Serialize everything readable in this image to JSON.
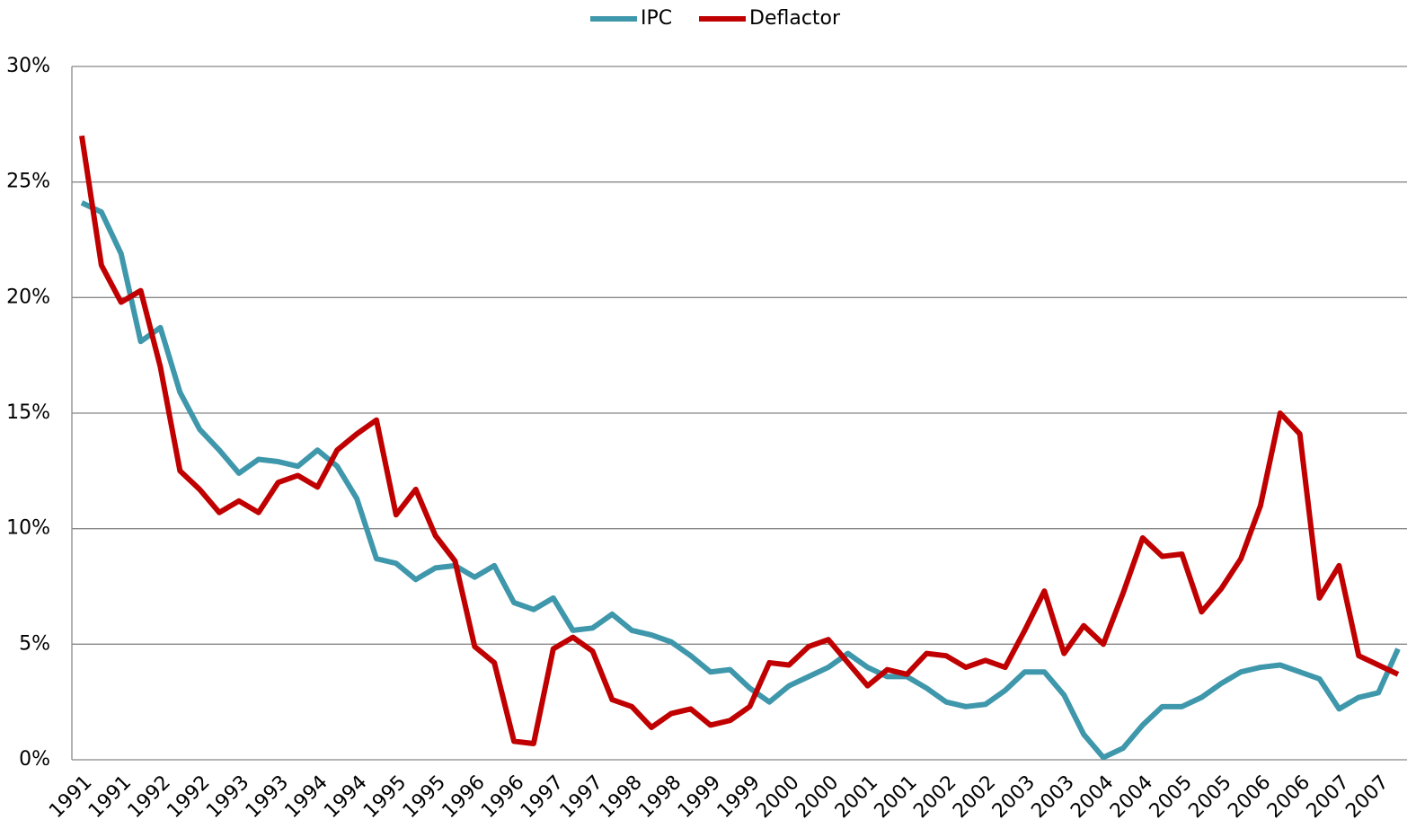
{
  "chart_data": {
    "type": "line",
    "categories": [
      "1991",
      null,
      "1991",
      null,
      "1992",
      null,
      "1992",
      null,
      "1993",
      null,
      "1993",
      null,
      "1994",
      null,
      "1994",
      null,
      "1995",
      null,
      "1995",
      null,
      "1996",
      null,
      "1996",
      null,
      "1997",
      null,
      "1997",
      null,
      "1998",
      null,
      "1998",
      null,
      "1999",
      null,
      "1999",
      null,
      "2000",
      null,
      "2000",
      null,
      "2001",
      null,
      "2001",
      null,
      "2002",
      null,
      "2002",
      null,
      "2003",
      null,
      "2003",
      null,
      "2004",
      null,
      "2004",
      null,
      "2005",
      null,
      "2005",
      null,
      "2006",
      null,
      "2006",
      null,
      "2007",
      null,
      "2007",
      null
    ],
    "series": [
      {
        "name": "IPC",
        "color": "#3e97ab",
        "values": [
          24.1,
          23.7,
          21.9,
          18.1,
          18.7,
          15.9,
          14.3,
          13.4,
          12.4,
          13.0,
          12.9,
          12.7,
          13.4,
          12.7,
          11.3,
          8.7,
          8.5,
          7.8,
          8.3,
          8.4,
          7.9,
          8.4,
          6.8,
          6.5,
          7.0,
          5.6,
          5.7,
          6.3,
          5.6,
          5.4,
          5.1,
          4.5,
          3.8,
          3.9,
          3.1,
          2.5,
          3.2,
          3.6,
          4.0,
          4.6,
          4.0,
          3.6,
          3.6,
          3.1,
          2.5,
          2.3,
          2.4,
          3.0,
          3.8,
          3.8,
          2.8,
          1.1,
          0.1,
          0.5,
          1.5,
          2.3,
          2.3,
          2.7,
          3.3,
          3.8,
          4.0,
          4.1,
          3.8,
          3.5,
          2.2,
          2.7,
          2.9,
          4.8
        ]
      },
      {
        "name": "Deflactor",
        "color": "#c00000",
        "values": [
          27.0,
          21.4,
          19.8,
          20.3,
          17.0,
          12.5,
          11.7,
          10.7,
          11.2,
          10.7,
          12.0,
          12.3,
          11.8,
          13.4,
          14.1,
          14.7,
          10.6,
          11.7,
          9.7,
          8.6,
          4.9,
          4.2,
          0.8,
          0.7,
          4.8,
          5.3,
          4.7,
          2.6,
          2.3,
          1.4,
          2.0,
          2.2,
          1.5,
          1.7,
          2.3,
          4.2,
          4.1,
          4.9,
          5.2,
          4.2,
          3.2,
          3.9,
          3.7,
          4.6,
          4.5,
          4.0,
          4.3,
          4.0,
          5.6,
          7.3,
          4.6,
          5.8,
          5.0,
          7.2,
          9.6,
          8.8,
          8.9,
          6.4,
          7.4,
          8.7,
          11.0,
          15.0,
          14.1,
          7.0,
          8.4,
          4.5,
          4.1,
          3.7
        ]
      }
    ],
    "ylim": [
      0,
      30
    ],
    "yticks": [
      {
        "value": 0,
        "label": "0%"
      },
      {
        "value": 5,
        "label": "5%"
      },
      {
        "value": 10,
        "label": "10%"
      },
      {
        "value": 15,
        "label": "15%"
      },
      {
        "value": 20,
        "label": "20%"
      },
      {
        "value": 25,
        "label": "25%"
      },
      {
        "value": 30,
        "label": "30%"
      }
    ],
    "grid": true,
    "legend": "top"
  }
}
